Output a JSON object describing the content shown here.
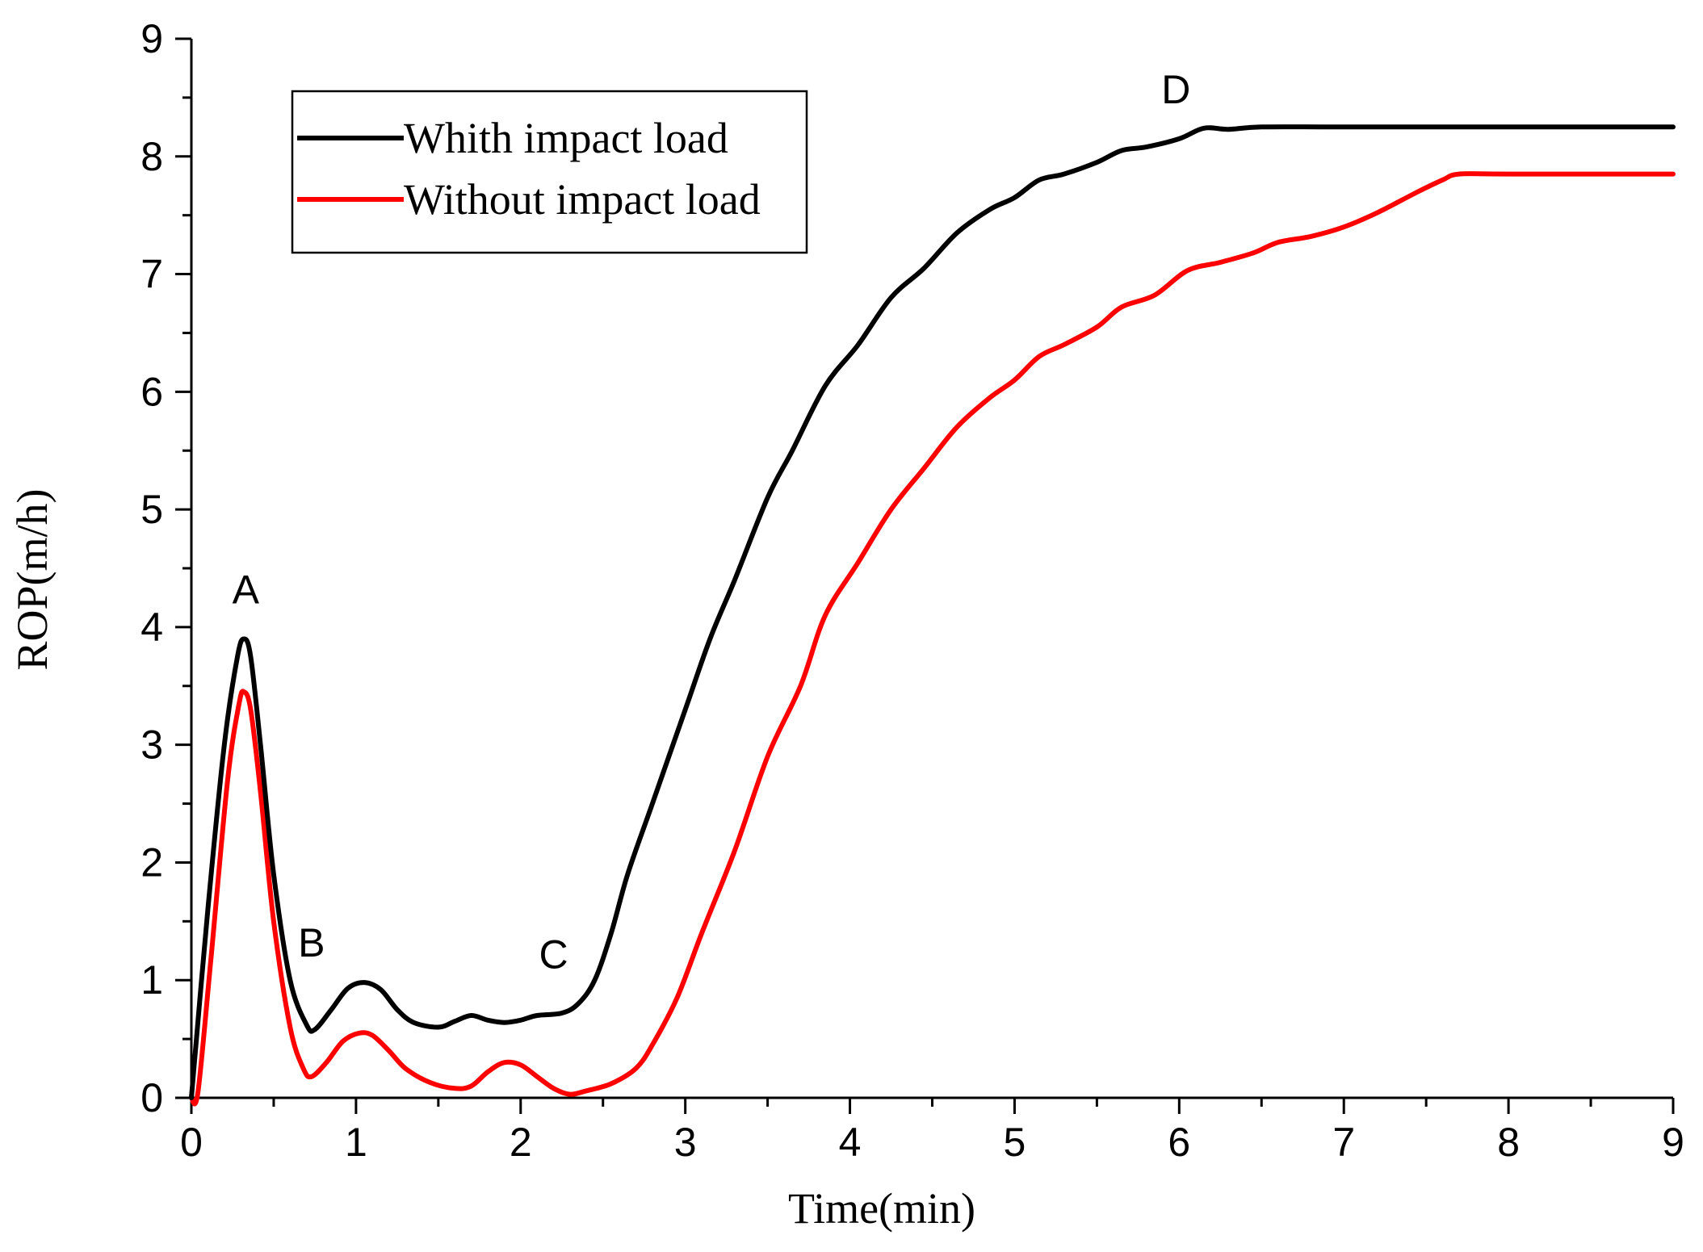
{
  "chart_data": {
    "type": "line",
    "title": "",
    "xlabel": "Time(min)",
    "ylabel": "ROP(m/h)",
    "xlim": [
      0,
      9
    ],
    "ylim": [
      0,
      9
    ],
    "xticks": [
      "0",
      "1",
      "2",
      "3",
      "4",
      "5",
      "6",
      "7",
      "8",
      "9"
    ],
    "yticks": [
      "0",
      "1",
      "2",
      "3",
      "4",
      "5",
      "6",
      "7",
      "8",
      "9"
    ],
    "grid": false,
    "legend_position": "top-left",
    "series": [
      {
        "name": "Whith impact load",
        "color": "#000000",
        "points": [
          [
            0.0,
            0.0
          ],
          [
            0.1,
            1.6
          ],
          [
            0.2,
            3.0
          ],
          [
            0.28,
            3.75
          ],
          [
            0.32,
            3.9
          ],
          [
            0.36,
            3.75
          ],
          [
            0.42,
            3.0
          ],
          [
            0.5,
            1.9
          ],
          [
            0.6,
            1.0
          ],
          [
            0.7,
            0.62
          ],
          [
            0.75,
            0.58
          ],
          [
            0.85,
            0.75
          ],
          [
            0.95,
            0.93
          ],
          [
            1.05,
            0.98
          ],
          [
            1.15,
            0.92
          ],
          [
            1.25,
            0.75
          ],
          [
            1.35,
            0.64
          ],
          [
            1.5,
            0.6
          ],
          [
            1.6,
            0.65
          ],
          [
            1.7,
            0.7
          ],
          [
            1.8,
            0.66
          ],
          [
            1.9,
            0.64
          ],
          [
            2.0,
            0.66
          ],
          [
            2.1,
            0.7
          ],
          [
            2.25,
            0.72
          ],
          [
            2.35,
            0.8
          ],
          [
            2.45,
            1.0
          ],
          [
            2.55,
            1.4
          ],
          [
            2.65,
            1.9
          ],
          [
            2.8,
            2.5
          ],
          [
            3.0,
            3.3
          ],
          [
            3.15,
            3.9
          ],
          [
            3.3,
            4.4
          ],
          [
            3.5,
            5.1
          ],
          [
            3.65,
            5.5
          ],
          [
            3.85,
            6.05
          ],
          [
            4.05,
            6.4
          ],
          [
            4.25,
            6.8
          ],
          [
            4.45,
            7.05
          ],
          [
            4.65,
            7.35
          ],
          [
            4.85,
            7.55
          ],
          [
            5.0,
            7.65
          ],
          [
            5.15,
            7.8
          ],
          [
            5.3,
            7.85
          ],
          [
            5.5,
            7.95
          ],
          [
            5.65,
            8.05
          ],
          [
            5.8,
            8.08
          ],
          [
            6.0,
            8.15
          ],
          [
            6.15,
            8.24
          ],
          [
            6.3,
            8.23
          ],
          [
            6.5,
            8.25
          ],
          [
            7.0,
            8.25
          ],
          [
            8.0,
            8.25
          ],
          [
            9.0,
            8.25
          ]
        ]
      },
      {
        "name": "Without impact load",
        "color": "#ff0000",
        "points": [
          [
            0.0,
            0.0
          ],
          [
            0.04,
            0.05
          ],
          [
            0.12,
            1.2
          ],
          [
            0.22,
            2.7
          ],
          [
            0.29,
            3.35
          ],
          [
            0.32,
            3.45
          ],
          [
            0.36,
            3.3
          ],
          [
            0.42,
            2.6
          ],
          [
            0.5,
            1.5
          ],
          [
            0.6,
            0.6
          ],
          [
            0.68,
            0.25
          ],
          [
            0.73,
            0.18
          ],
          [
            0.82,
            0.3
          ],
          [
            0.92,
            0.48
          ],
          [
            1.02,
            0.55
          ],
          [
            1.1,
            0.53
          ],
          [
            1.2,
            0.4
          ],
          [
            1.3,
            0.25
          ],
          [
            1.45,
            0.13
          ],
          [
            1.6,
            0.08
          ],
          [
            1.7,
            0.1
          ],
          [
            1.8,
            0.22
          ],
          [
            1.9,
            0.3
          ],
          [
            2.0,
            0.28
          ],
          [
            2.1,
            0.18
          ],
          [
            2.2,
            0.08
          ],
          [
            2.3,
            0.03
          ],
          [
            2.4,
            0.06
          ],
          [
            2.55,
            0.12
          ],
          [
            2.7,
            0.25
          ],
          [
            2.8,
            0.45
          ],
          [
            2.95,
            0.85
          ],
          [
            3.1,
            1.4
          ],
          [
            3.3,
            2.1
          ],
          [
            3.5,
            2.9
          ],
          [
            3.7,
            3.5
          ],
          [
            3.85,
            4.1
          ],
          [
            4.05,
            4.55
          ],
          [
            4.25,
            5.0
          ],
          [
            4.45,
            5.35
          ],
          [
            4.65,
            5.7
          ],
          [
            4.85,
            5.95
          ],
          [
            5.0,
            6.1
          ],
          [
            5.15,
            6.3
          ],
          [
            5.3,
            6.4
          ],
          [
            5.5,
            6.55
          ],
          [
            5.65,
            6.72
          ],
          [
            5.85,
            6.82
          ],
          [
            6.05,
            7.03
          ],
          [
            6.25,
            7.1
          ],
          [
            6.45,
            7.18
          ],
          [
            6.6,
            7.27
          ],
          [
            6.8,
            7.32
          ],
          [
            7.0,
            7.4
          ],
          [
            7.2,
            7.52
          ],
          [
            7.45,
            7.7
          ],
          [
            7.6,
            7.8
          ],
          [
            7.7,
            7.85
          ],
          [
            8.0,
            7.85
          ],
          [
            9.0,
            7.85
          ]
        ]
      }
    ],
    "annotations": [
      {
        "label": "A",
        "x": 0.33,
        "y": 4.2
      },
      {
        "label": "B",
        "x": 0.73,
        "y": 1.2
      },
      {
        "label": "C",
        "x": 2.2,
        "y": 1.1
      },
      {
        "label": "D",
        "x": 5.98,
        "y": 8.45
      }
    ]
  }
}
